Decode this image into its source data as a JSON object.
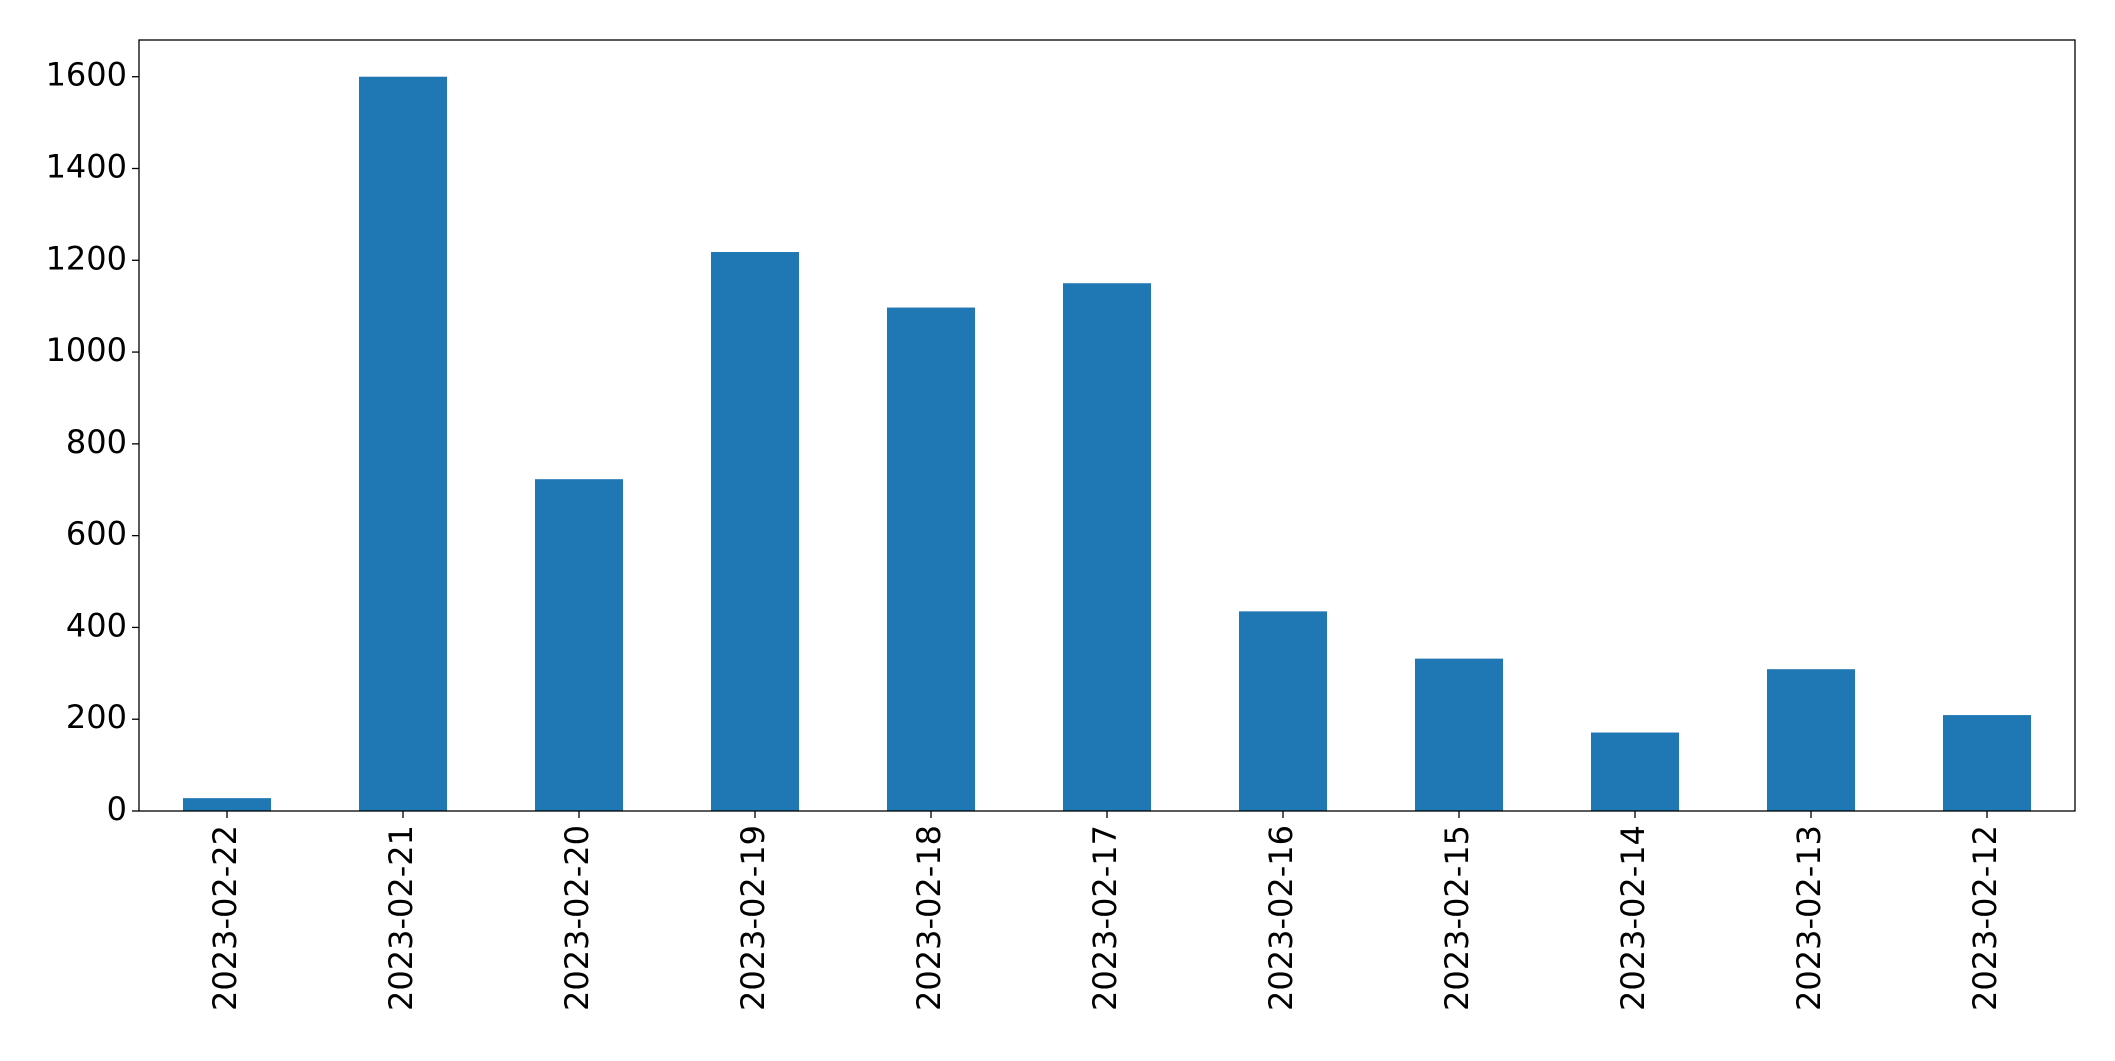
{
  "chart_data": {
    "type": "bar",
    "categories": [
      "2023-02-22",
      "2023-02-21",
      "2023-02-20",
      "2023-02-19",
      "2023-02-18",
      "2023-02-17",
      "2023-02-16",
      "2023-02-15",
      "2023-02-14",
      "2023-02-13",
      "2023-02-12"
    ],
    "values": [
      28,
      1600,
      723,
      1218,
      1097,
      1150,
      435,
      332,
      171,
      309,
      209
    ],
    "color": "#1f77b4",
    "ylim": [
      0,
      1680
    ],
    "yticks": [
      0,
      200,
      400,
      600,
      800,
      1000,
      1200,
      1400,
      1600
    ],
    "grid": false
  }
}
